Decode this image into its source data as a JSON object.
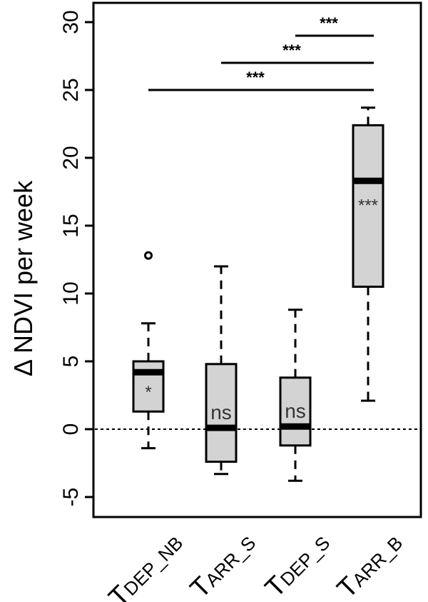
{
  "chart_data": {
    "type": "boxplot",
    "ylabel": "Δ NDVI per week",
    "ylim": [
      -6.5,
      31
    ],
    "yticks": [
      -5,
      0,
      5,
      10,
      15,
      20,
      25,
      30
    ],
    "reference_line": {
      "y": 0,
      "style": "dotted"
    },
    "categories": [
      {
        "main": "T",
        "sub": "DEP_NB"
      },
      {
        "main": "T",
        "sub": "ARR_S"
      },
      {
        "main": "T",
        "sub": "DEP_S"
      },
      {
        "main": "T",
        "sub": "ARR_B"
      }
    ],
    "boxes": [
      {
        "whisker_low": -1.4,
        "q1": 1.3,
        "median": 4.2,
        "q3": 5.0,
        "whisker_high": 7.8,
        "outliers": [
          12.8
        ],
        "annotation": "*"
      },
      {
        "whisker_low": -3.3,
        "q1": -2.4,
        "median": 0.1,
        "q3": 4.8,
        "whisker_high": 12.0,
        "outliers": [],
        "annotation": "ns"
      },
      {
        "whisker_low": -3.8,
        "q1": -1.2,
        "median": 0.2,
        "q3": 3.8,
        "whisker_high": 8.8,
        "outliers": [],
        "annotation": "ns"
      },
      {
        "whisker_low": 2.1,
        "q1": 10.5,
        "median": 18.3,
        "q3": 22.4,
        "whisker_high": 23.7,
        "outliers": [],
        "annotation": "***"
      }
    ],
    "comparisons": [
      {
        "from": 0,
        "to": 3,
        "y": 25.0,
        "label": "***"
      },
      {
        "from": 1,
        "to": 3,
        "y": 27.0,
        "label": "***"
      },
      {
        "from": 2,
        "to": 3,
        "y": 29.0,
        "label": "***"
      }
    ]
  }
}
